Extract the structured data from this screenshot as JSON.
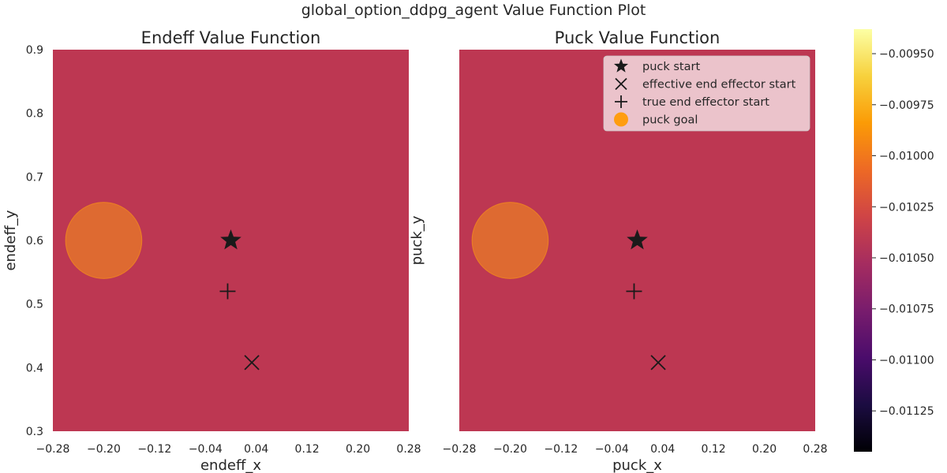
{
  "figure": {
    "title": "global_option_ddpg_agent Value Function Plot"
  },
  "colors": {
    "heatmap_fill": "#bd3752",
    "goal": "#ff9d10",
    "marker": "#1a1a1a",
    "colormap": [
      "#000004",
      "#1b0c41",
      "#4a0c6b",
      "#781c6d",
      "#a52c60",
      "#cf4446",
      "#ed6925",
      "#fb9b06",
      "#f7d13d",
      "#fcffa4"
    ]
  },
  "chart_data": [
    {
      "type": "heatmap",
      "title": "Endeff Value Function",
      "xlabel": "endeff_x",
      "ylabel": "endeff_y",
      "xlim": [
        -0.28,
        0.28
      ],
      "ylim": [
        0.3,
        0.9
      ],
      "xticks": [
        "−0.28",
        "−0.20",
        "−0.12",
        "−0.04",
        "0.04",
        "0.12",
        "0.20",
        "0.28"
      ],
      "yticks": [
        "0.3",
        "0.4",
        "0.5",
        "0.6",
        "0.7",
        "0.8",
        "0.9"
      ],
      "grid": false,
      "show_yticks": true,
      "value": -0.01053,
      "points": {
        "puck_goal": {
          "x": -0.2,
          "y": 0.6,
          "radius": 0.06
        },
        "puck_start": {
          "x": 0.0,
          "y": 0.6
        },
        "true_end_effector_start": {
          "x": -0.005,
          "y": 0.52
        },
        "effective_end_effector_start": {
          "x": 0.033,
          "y": 0.408
        }
      }
    },
    {
      "type": "heatmap",
      "title": "Puck Value Function",
      "xlabel": "puck_x",
      "ylabel": "puck_y",
      "xlim": [
        -0.28,
        0.28
      ],
      "ylim": [
        0.3,
        0.9
      ],
      "xticks": [
        "−0.28",
        "−0.20",
        "−0.12",
        "−0.04",
        "0.04",
        "0.12",
        "0.20",
        "0.28"
      ],
      "yticks": [],
      "grid": false,
      "show_yticks": false,
      "value": -0.01053,
      "points": {
        "puck_goal": {
          "x": -0.2,
          "y": 0.6,
          "radius": 0.06
        },
        "puck_start": {
          "x": 0.0,
          "y": 0.6
        },
        "true_end_effector_start": {
          "x": -0.005,
          "y": 0.52
        },
        "effective_end_effector_start": {
          "x": 0.033,
          "y": 0.408
        }
      },
      "legend": {
        "placement": "top-right",
        "entries": [
          {
            "marker": "star",
            "label": "puck start"
          },
          {
            "marker": "x",
            "label": "effective end effector start"
          },
          {
            "marker": "plus",
            "label": "true end effector start"
          },
          {
            "marker": "circle",
            "label": "puck goal"
          }
        ]
      }
    },
    {
      "type": "colorbar",
      "colormap": "inferno",
      "range": [
        -0.01145,
        -0.00938
      ],
      "ticks": [
        {
          "value": -0.0095,
          "label": "−0.00950"
        },
        {
          "value": -0.00975,
          "label": "−0.00975"
        },
        {
          "value": -0.01,
          "label": "−0.01000"
        },
        {
          "value": -0.01025,
          "label": "−0.01025"
        },
        {
          "value": -0.0105,
          "label": "−0.01050"
        },
        {
          "value": -0.01075,
          "label": "−0.01075"
        },
        {
          "value": -0.011,
          "label": "−0.01100"
        },
        {
          "value": -0.01125,
          "label": "−0.01125"
        }
      ]
    }
  ]
}
